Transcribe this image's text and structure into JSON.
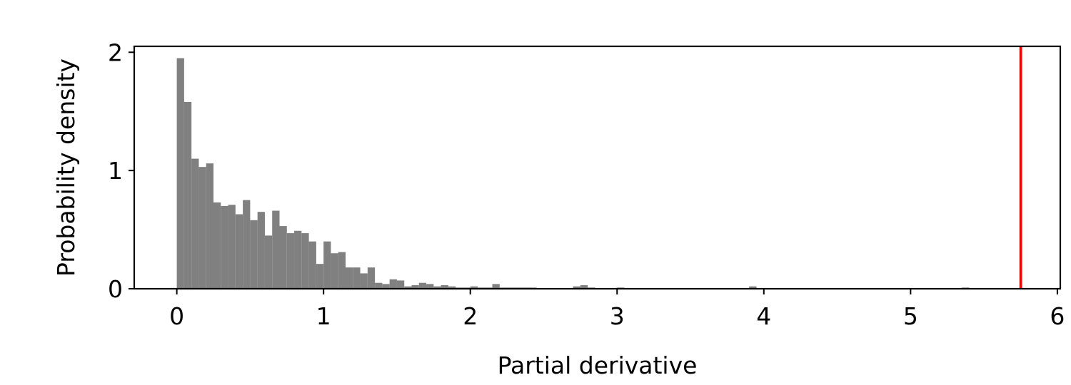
{
  "chart_data": {
    "type": "bar",
    "subtype": "histogram",
    "title": "",
    "xlabel": "Partial derivative",
    "ylabel": "Probability density",
    "xlim": [
      -0.29,
      6.02
    ],
    "ylim": [
      0,
      2.05
    ],
    "xticks": [
      0,
      1,
      2,
      3,
      4,
      5,
      6
    ],
    "yticks": [
      0,
      1,
      2
    ],
    "grid": false,
    "legend": "none",
    "bar_color": "#808080",
    "bin_width": 0.05,
    "bins": [
      {
        "x": 0.0,
        "y": 1.95
      },
      {
        "x": 0.05,
        "y": 1.58
      },
      {
        "x": 0.1,
        "y": 1.1
      },
      {
        "x": 0.15,
        "y": 1.03
      },
      {
        "x": 0.2,
        "y": 1.06
      },
      {
        "x": 0.25,
        "y": 0.73
      },
      {
        "x": 0.3,
        "y": 0.7
      },
      {
        "x": 0.35,
        "y": 0.71
      },
      {
        "x": 0.4,
        "y": 0.63
      },
      {
        "x": 0.45,
        "y": 0.75
      },
      {
        "x": 0.5,
        "y": 0.58
      },
      {
        "x": 0.55,
        "y": 0.65
      },
      {
        "x": 0.6,
        "y": 0.45
      },
      {
        "x": 0.65,
        "y": 0.66
      },
      {
        "x": 0.7,
        "y": 0.53
      },
      {
        "x": 0.75,
        "y": 0.47
      },
      {
        "x": 0.8,
        "y": 0.49
      },
      {
        "x": 0.85,
        "y": 0.47
      },
      {
        "x": 0.9,
        "y": 0.4
      },
      {
        "x": 0.95,
        "y": 0.21
      },
      {
        "x": 1.0,
        "y": 0.4
      },
      {
        "x": 1.05,
        "y": 0.3
      },
      {
        "x": 1.1,
        "y": 0.31
      },
      {
        "x": 1.15,
        "y": 0.18
      },
      {
        "x": 1.2,
        "y": 0.18
      },
      {
        "x": 1.25,
        "y": 0.13
      },
      {
        "x": 1.3,
        "y": 0.18
      },
      {
        "x": 1.35,
        "y": 0.05
      },
      {
        "x": 1.4,
        "y": 0.04
      },
      {
        "x": 1.45,
        "y": 0.08
      },
      {
        "x": 1.5,
        "y": 0.07
      },
      {
        "x": 1.55,
        "y": 0.02
      },
      {
        "x": 1.6,
        "y": 0.03
      },
      {
        "x": 1.65,
        "y": 0.05
      },
      {
        "x": 1.7,
        "y": 0.04
      },
      {
        "x": 1.75,
        "y": 0.02
      },
      {
        "x": 1.8,
        "y": 0.03
      },
      {
        "x": 1.85,
        "y": 0.02
      },
      {
        "x": 1.9,
        "y": 0.01
      },
      {
        "x": 1.95,
        "y": 0.01
      },
      {
        "x": 2.0,
        "y": 0.02
      },
      {
        "x": 2.05,
        "y": 0.01
      },
      {
        "x": 2.1,
        "y": 0.01
      },
      {
        "x": 2.15,
        "y": 0.04
      },
      {
        "x": 2.2,
        "y": 0.01
      },
      {
        "x": 2.25,
        "y": 0.01
      },
      {
        "x": 2.3,
        "y": 0.01
      },
      {
        "x": 2.35,
        "y": 0.01
      },
      {
        "x": 2.4,
        "y": 0.01
      },
      {
        "x": 2.7,
        "y": 0.02
      },
      {
        "x": 2.75,
        "y": 0.03
      },
      {
        "x": 2.8,
        "y": 0.01
      },
      {
        "x": 3.0,
        "y": 0.01
      },
      {
        "x": 3.9,
        "y": 0.02
      },
      {
        "x": 5.35,
        "y": 0.01
      }
    ],
    "reference_line": {
      "x": 5.75,
      "color": "#ff0000"
    }
  }
}
